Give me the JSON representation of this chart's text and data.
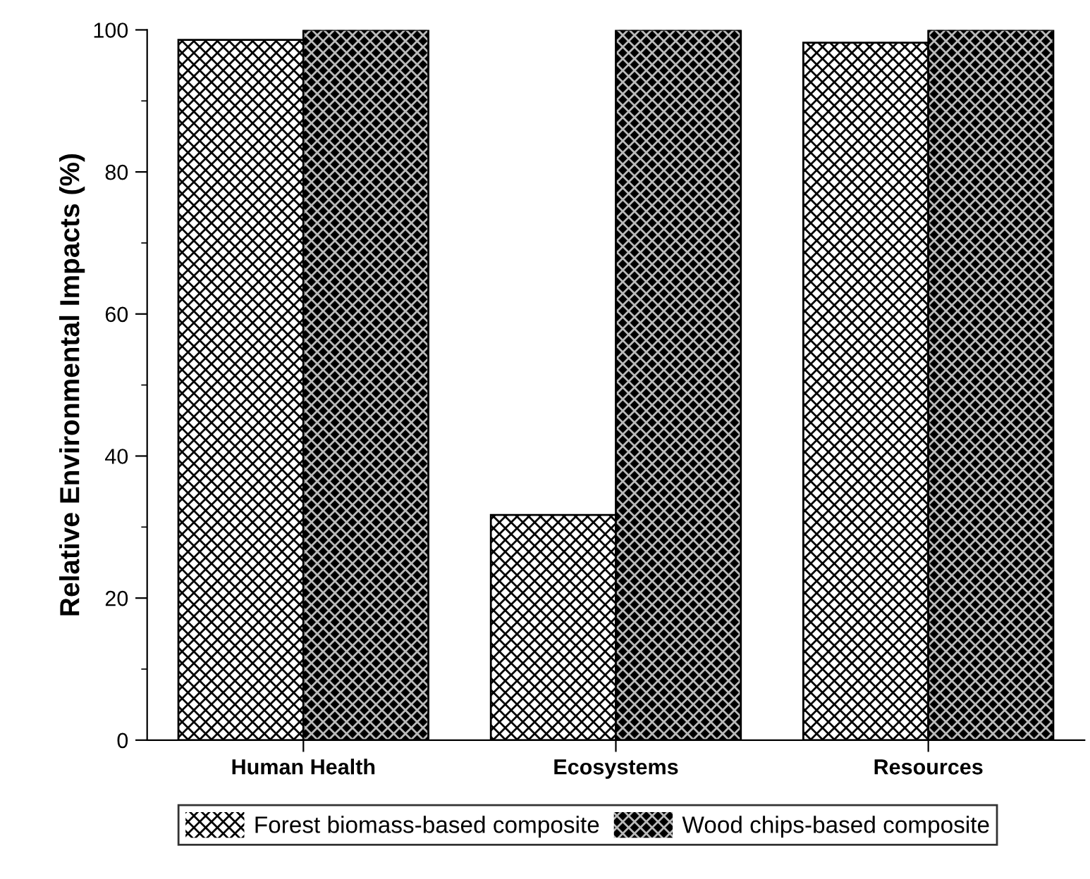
{
  "chart_data": {
    "type": "bar",
    "ylabel": "Relative Environmental Impacts (%)",
    "categories": [
      "Human Health",
      "Ecosystems",
      "Resources"
    ],
    "series": [
      {
        "name": "Forest biomass-based composite",
        "color": "#ffffff",
        "values": [
          98.6,
          31.7,
          98.2
        ]
      },
      {
        "name": "Wood chips-based composite",
        "color": "#000000",
        "values": [
          100,
          100,
          100
        ]
      }
    ],
    "ylim": [
      0,
      100
    ],
    "yticks": [
      0,
      20,
      40,
      60,
      80,
      100
    ],
    "grid": false,
    "legend": "bottom"
  }
}
